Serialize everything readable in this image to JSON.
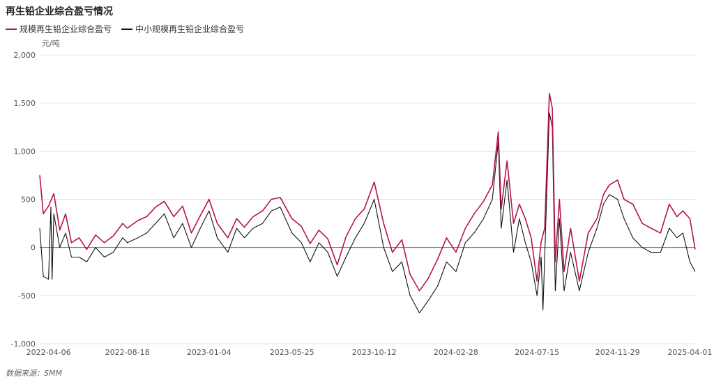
{
  "header": {
    "title": "再生铅企业综合盈亏情况",
    "unit": "元/吨",
    "source": "数据来源：SMM"
  },
  "colors": {
    "large": "#b5144a",
    "small": "#111111",
    "grid": "#e5e5e5",
    "zero": "#666666"
  },
  "chart_data": {
    "type": "line",
    "title": "再生铅企业综合盈亏情况",
    "ylabel": "元/吨",
    "xlabel": "",
    "ylim": [
      -1000,
      2000
    ],
    "yticks": [
      "-1,000",
      "-500",
      "0",
      "500",
      "1,000",
      "1,500",
      "2,000"
    ],
    "ytick_values": [
      -1000,
      -500,
      0,
      500,
      1000,
      1500,
      2000
    ],
    "xticks": [
      "2022-04-06",
      "2022-08-18",
      "2023-01-04",
      "2023-05-25",
      "2023-10-12",
      "2024-02-28",
      "2024-07-15",
      "2024-11-29",
      "2025-04-01"
    ],
    "x_range": [
      "2022-03-22",
      "2025-04-10"
    ],
    "grid": true,
    "legend_position": "top-left",
    "series": [
      {
        "name": "规模再生铅企业综合盈亏",
        "x": [
          "2022-03-22",
          "2022-03-28",
          "2022-04-06",
          "2022-04-15",
          "2022-04-25",
          "2022-05-05",
          "2022-05-15",
          "2022-05-28",
          "2022-06-10",
          "2022-06-25",
          "2022-07-10",
          "2022-07-25",
          "2022-08-10",
          "2022-08-18",
          "2022-09-05",
          "2022-09-20",
          "2022-10-05",
          "2022-10-20",
          "2022-11-05",
          "2022-11-20",
          "2022-12-05",
          "2022-12-20",
          "2023-01-04",
          "2023-01-18",
          "2023-02-05",
          "2023-02-20",
          "2023-03-05",
          "2023-03-20",
          "2023-04-05",
          "2023-04-20",
          "2023-05-05",
          "2023-05-25",
          "2023-06-10",
          "2023-06-25",
          "2023-07-10",
          "2023-07-25",
          "2023-08-10",
          "2023-08-25",
          "2023-09-10",
          "2023-09-25",
          "2023-10-12",
          "2023-10-28",
          "2023-11-12",
          "2023-11-28",
          "2023-12-12",
          "2023-12-28",
          "2024-01-12",
          "2024-01-28",
          "2024-02-12",
          "2024-02-28",
          "2024-03-15",
          "2024-03-30",
          "2024-04-15",
          "2024-04-30",
          "2024-05-10",
          "2024-05-15",
          "2024-05-25",
          "2024-06-05",
          "2024-06-15",
          "2024-06-25",
          "2024-07-05",
          "2024-07-15",
          "2024-07-22",
          "2024-07-28",
          "2024-08-05",
          "2024-08-10",
          "2024-08-15",
          "2024-08-22",
          "2024-08-30",
          "2024-09-10",
          "2024-09-25",
          "2024-10-10",
          "2024-10-25",
          "2024-11-05",
          "2024-11-15",
          "2024-11-29",
          "2024-12-10",
          "2024-12-25",
          "2025-01-10",
          "2025-01-25",
          "2025-02-10",
          "2025-02-25",
          "2025-03-10",
          "2025-03-20",
          "2025-04-01",
          "2025-04-10"
        ],
        "values": [
          750,
          350,
          430,
          560,
          180,
          350,
          50,
          100,
          -20,
          130,
          50,
          120,
          250,
          200,
          280,
          320,
          420,
          480,
          320,
          430,
          150,
          330,
          500,
          250,
          100,
          300,
          210,
          320,
          380,
          500,
          520,
          300,
          220,
          40,
          180,
          90,
          -180,
          110,
          300,
          400,
          680,
          250,
          -50,
          80,
          -280,
          -450,
          -320,
          -120,
          100,
          -50,
          200,
          350,
          480,
          650,
          1200,
          400,
          900,
          250,
          450,
          300,
          100,
          -350,
          60,
          200,
          1600,
          1450,
          -150,
          500,
          -250,
          200,
          -350,
          150,
          300,
          550,
          650,
          700,
          500,
          450,
          250,
          200,
          150,
          450,
          320,
          380,
          300,
          -20
        ]
      },
      {
        "name": "中小规模再生铅企业综合盈亏",
        "x": [
          "2022-03-22",
          "2022-03-28",
          "2022-04-06",
          "2022-04-10",
          "2022-04-12",
          "2022-04-15",
          "2022-04-25",
          "2022-05-05",
          "2022-05-15",
          "2022-05-28",
          "2022-06-10",
          "2022-06-25",
          "2022-07-10",
          "2022-07-25",
          "2022-08-10",
          "2022-08-18",
          "2022-09-05",
          "2022-09-20",
          "2022-10-05",
          "2022-10-20",
          "2022-11-05",
          "2022-11-20",
          "2022-12-05",
          "2022-12-20",
          "2023-01-04",
          "2023-01-18",
          "2023-02-05",
          "2023-02-20",
          "2023-03-05",
          "2023-03-20",
          "2023-04-05",
          "2023-04-20",
          "2023-05-05",
          "2023-05-25",
          "2023-06-10",
          "2023-06-25",
          "2023-07-10",
          "2023-07-25",
          "2023-08-10",
          "2023-08-25",
          "2023-09-10",
          "2023-09-25",
          "2023-10-12",
          "2023-10-28",
          "2023-11-12",
          "2023-11-28",
          "2023-12-12",
          "2023-12-28",
          "2024-01-12",
          "2024-01-28",
          "2024-02-12",
          "2024-02-28",
          "2024-03-15",
          "2024-03-30",
          "2024-04-15",
          "2024-04-30",
          "2024-05-10",
          "2024-05-15",
          "2024-05-25",
          "2024-06-05",
          "2024-06-15",
          "2024-06-25",
          "2024-07-05",
          "2024-07-15",
          "2024-07-22",
          "2024-07-25",
          "2024-07-28",
          "2024-08-05",
          "2024-08-10",
          "2024-08-15",
          "2024-08-22",
          "2024-08-30",
          "2024-09-10",
          "2024-09-25",
          "2024-10-10",
          "2024-10-25",
          "2024-11-05",
          "2024-11-15",
          "2024-11-29",
          "2024-12-10",
          "2024-12-25",
          "2025-01-10",
          "2025-01-25",
          "2025-02-10",
          "2025-02-25",
          "2025-03-10",
          "2025-03-20",
          "2025-04-01",
          "2025-04-10"
        ],
        "values": [
          200,
          -300,
          -330,
          420,
          -330,
          350,
          0,
          150,
          -100,
          -100,
          -150,
          0,
          -100,
          -50,
          100,
          50,
          100,
          150,
          250,
          350,
          100,
          250,
          0,
          200,
          380,
          100,
          -50,
          200,
          100,
          200,
          250,
          380,
          420,
          150,
          50,
          -150,
          50,
          -50,
          -300,
          -100,
          100,
          250,
          500,
          0,
          -250,
          -150,
          -500,
          -680,
          -550,
          -400,
          -150,
          -250,
          50,
          150,
          300,
          500,
          1100,
          200,
          700,
          -50,
          300,
          50,
          -150,
          -500,
          -100,
          -650,
          -100,
          1400,
          1250,
          -450,
          300,
          -450,
          -50,
          -450,
          -50,
          200,
          450,
          550,
          500,
          300,
          100,
          0,
          -50,
          -50,
          200,
          100,
          150,
          -150,
          -250
        ]
      }
    ]
  }
}
